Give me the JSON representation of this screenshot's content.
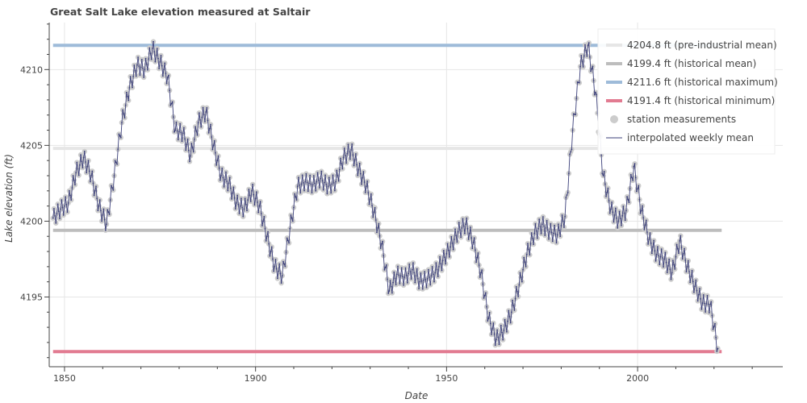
{
  "chart_data": {
    "type": "line",
    "title": "Great Salt Lake elevation measured at Saltair",
    "xlabel": "Date",
    "ylabel": "Lake elevation (ft)",
    "xlim": [
      1846,
      2038
    ],
    "ylim": [
      4190.4,
      4213.1
    ],
    "x_ticks": [
      "1850",
      "1900",
      "1950",
      "2000"
    ],
    "y_ticks": [
      "4195",
      "4200",
      "4205",
      "4210"
    ],
    "grid": true,
    "legend_position": "top-right",
    "reference_lines": [
      {
        "label": "4204.8 ft (pre-industrial mean)",
        "y": 4204.8,
        "x_range": [
          1847,
          2022
        ],
        "color": "#e6e6e6"
      },
      {
        "label": "4199.4 ft (historical mean)",
        "y": 4199.4,
        "x_range": [
          1847,
          2022
        ],
        "color": "#bdbdbd"
      },
      {
        "label": "4211.6 ft (historical maximum)",
        "y": 4211.6,
        "x_range": [
          1847,
          2022
        ],
        "color": "#9ebbd9"
      },
      {
        "label": "4191.4 ft (historical minimum)",
        "y": 4191.4,
        "x_range": [
          1847,
          2022
        ],
        "color": "#e27b91"
      }
    ],
    "series": [
      {
        "name": "station measurements",
        "style": "points",
        "color": "#cccccc",
        "x": [
          1847,
          1849,
          1851,
          1853,
          1855,
          1857,
          1859,
          1861,
          1863,
          1865,
          1867,
          1869,
          1871,
          1873,
          1875,
          1877,
          1879,
          1881,
          1883,
          1885,
          1887,
          1889,
          1891,
          1893,
          1895,
          1897,
          1899,
          1901,
          1903,
          1905,
          1907,
          1909,
          1911,
          1913,
          1915,
          1917,
          1919,
          1921,
          1923,
          1925,
          1927,
          1929,
          1931,
          1933,
          1935,
          1937,
          1939,
          1941,
          1943,
          1945,
          1947,
          1949,
          1951,
          1953,
          1955,
          1957,
          1959,
          1961,
          1963,
          1965,
          1967,
          1969,
          1971,
          1973,
          1975,
          1977,
          1979,
          1981,
          1983,
          1985,
          1987,
          1989,
          1991,
          1993,
          1995,
          1997,
          1999,
          2001,
          2003,
          2005,
          2007,
          2009,
          2011,
          2013,
          2015,
          2017,
          2019,
          2021
        ],
        "y": [
          4200.2,
          4200.8,
          4201.2,
          4203.2,
          4204.2,
          4203.0,
          4201.0,
          4199.8,
          4203.0,
          4206.5,
          4208.8,
          4210.3,
          4210.0,
          4211.4,
          4210.5,
          4209.5,
          4206.0,
          4205.8,
          4204.3,
          4206.5,
          4207.2,
          4205.0,
          4203.0,
          4202.5,
          4201.2,
          4200.8,
          4202.0,
          4201.0,
          4199.0,
          4197.0,
          4196.4,
          4199.5,
          4202.3,
          4202.6,
          4202.4,
          4202.8,
          4202.3,
          4202.6,
          4204.2,
          4204.7,
          4203.4,
          4202.3,
          4200.6,
          4198.5,
          4195.4,
          4196.5,
          4196.3,
          4196.8,
          4196.0,
          4196.2,
          4196.6,
          4197.4,
          4198.3,
          4199.3,
          4199.8,
          4198.6,
          4196.6,
          4193.6,
          4192.2,
          4192.8,
          4194.0,
          4195.8,
          4197.8,
          4199.2,
          4199.8,
          4199.3,
          4199.1,
          4200.3,
          4206.0,
          4210.2,
          4211.6,
          4208.5,
          4203.0,
          4200.8,
          4200.0,
          4200.7,
          4203.6,
          4200.7,
          4198.8,
          4197.8,
          4197.5,
          4196.6,
          4198.7,
          4197.0,
          4195.7,
          4194.6,
          4194.5,
          4191.6
        ]
      },
      {
        "name": "interpolated weekly mean",
        "style": "line",
        "color": "#3b3f7a"
      }
    ]
  }
}
